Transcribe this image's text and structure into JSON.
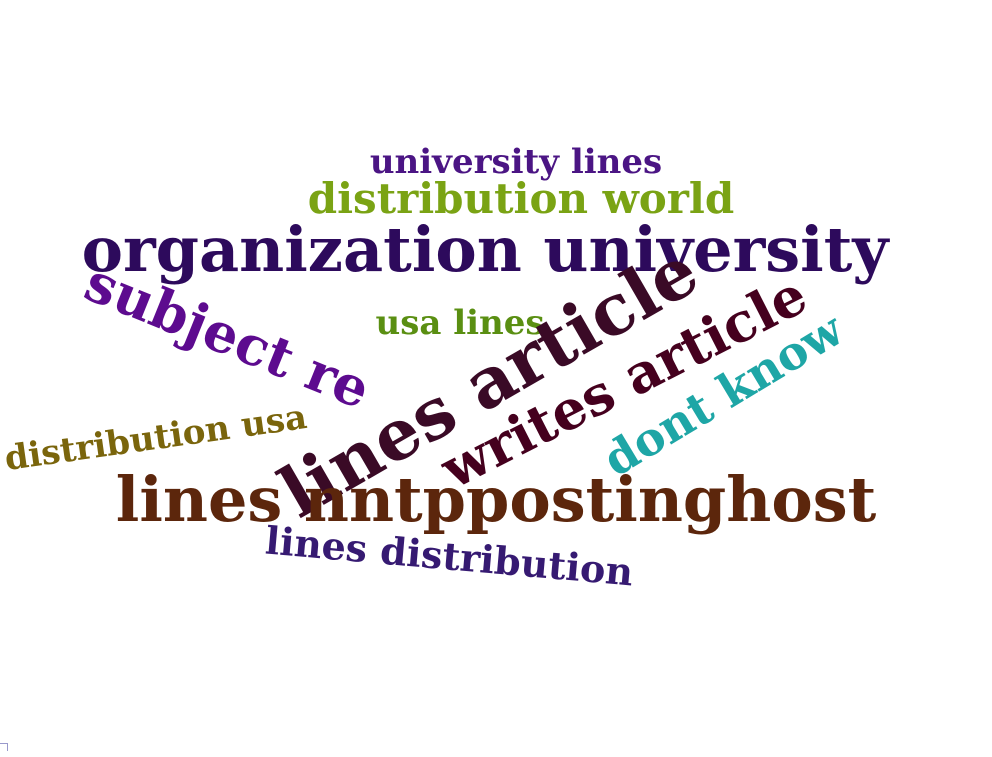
{
  "phrases": [
    {
      "text": "university lines",
      "color": "#4b1584"
    },
    {
      "text": "distribution world",
      "color": "#7aa314"
    },
    {
      "text": "organization university",
      "color": "#2d0a5c"
    },
    {
      "text": "subject re",
      "color": "#5d0b8f"
    },
    {
      "text": "usa lines",
      "color": "#5a8f12"
    },
    {
      "text": "lines article",
      "color": "#3a0a26"
    },
    {
      "text": "writes article",
      "color": "#45001e"
    },
    {
      "text": "dont know",
      "color": "#1ea6a6"
    },
    {
      "text": "distribution usa",
      "color": "#7a650c"
    },
    {
      "text": "lines nntppostinghost",
      "color": "#5c260c"
    },
    {
      "text": "lines distribution",
      "color": "#361a72"
    }
  ]
}
